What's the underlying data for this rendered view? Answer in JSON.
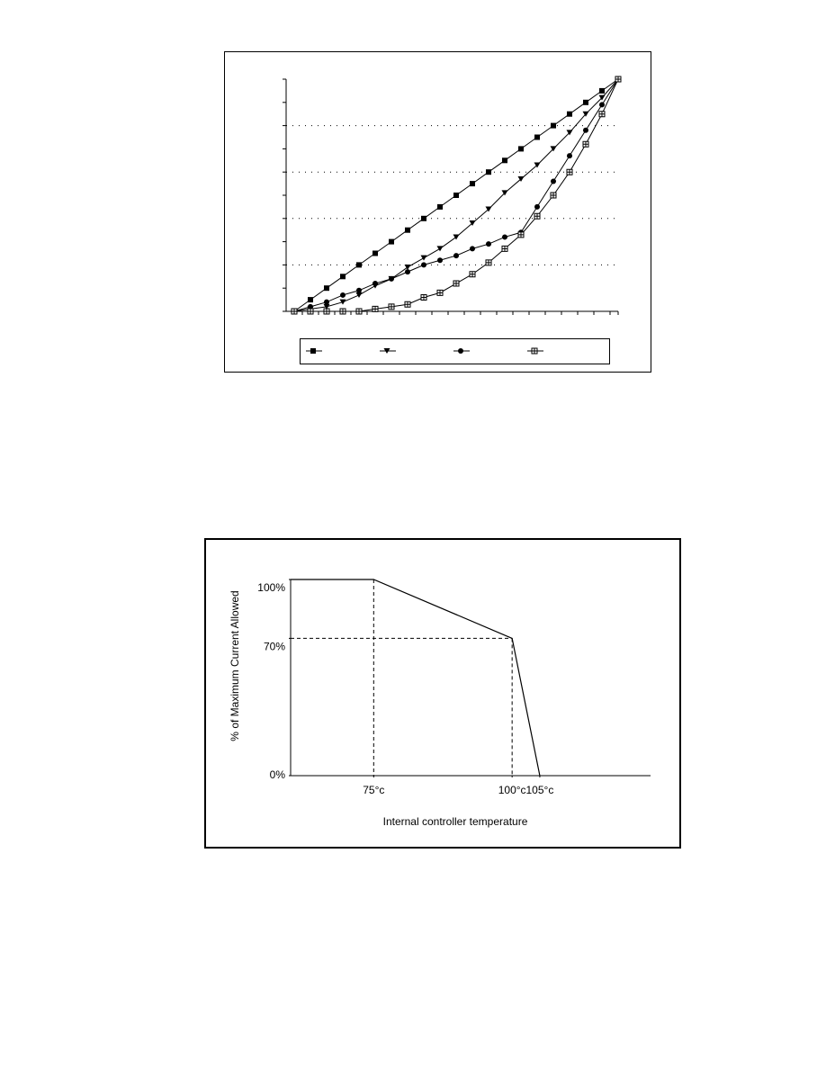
{
  "chart_data": [
    {
      "type": "line",
      "x": [
        0,
        1,
        2,
        3,
        4,
        5,
        6,
        7,
        8,
        9,
        10,
        11,
        12,
        13,
        14,
        15,
        16,
        17,
        18,
        19,
        20
      ],
      "xlim": [
        -0.5,
        20
      ],
      "ylim": [
        0,
        100
      ],
      "yticks": [
        0,
        20,
        40,
        60,
        80,
        100
      ],
      "grid": true,
      "series": [
        {
          "color": "#000000",
          "marker": "square",
          "values": [
            0,
            5,
            10,
            15,
            20,
            25,
            30,
            35,
            40,
            45,
            50,
            55,
            60,
            65,
            70,
            75,
            80,
            85,
            90,
            95,
            100
          ]
        },
        {
          "color": "#000000",
          "marker": "triangle",
          "values": [
            0,
            1,
            2,
            4,
            7,
            11,
            14,
            19,
            23,
            27,
            32,
            38,
            44,
            51,
            57,
            63,
            70,
            77,
            85,
            92,
            100
          ]
        },
        {
          "color": "#000000",
          "marker": "circle",
          "values": [
            0,
            2,
            4,
            7,
            9,
            12,
            14,
            17,
            20,
            22,
            24,
            27,
            29,
            32,
            34,
            45,
            56,
            67,
            78,
            89,
            100
          ]
        },
        {
          "color": "#000000",
          "marker": "boxplus",
          "values": [
            0,
            0,
            0,
            0,
            0,
            1,
            2,
            3,
            6,
            8,
            12,
            16,
            21,
            27,
            33,
            41,
            50,
            60,
            72,
            85,
            100
          ]
        }
      ]
    },
    {
      "type": "line",
      "x_label": "Internal controller temperature",
      "y_label": "% of Maximum Current Allowed",
      "x": [
        60,
        75,
        100,
        105
      ],
      "values": [
        100,
        100,
        70,
        0
      ],
      "color": "#000000",
      "drop_lines": true,
      "xlim": [
        60,
        125
      ],
      "xticks": [
        {
          "value": 75,
          "label": "75°c"
        },
        {
          "value": 100,
          "label": "100°c"
        },
        {
          "value": 105,
          "label": "105°c"
        }
      ],
      "ylim": [
        0,
        100
      ],
      "yticks": [
        {
          "value": 0,
          "label": "0%"
        },
        {
          "value": 70,
          "label": "70%"
        },
        {
          "value": 100,
          "label": "100%"
        }
      ]
    }
  ]
}
